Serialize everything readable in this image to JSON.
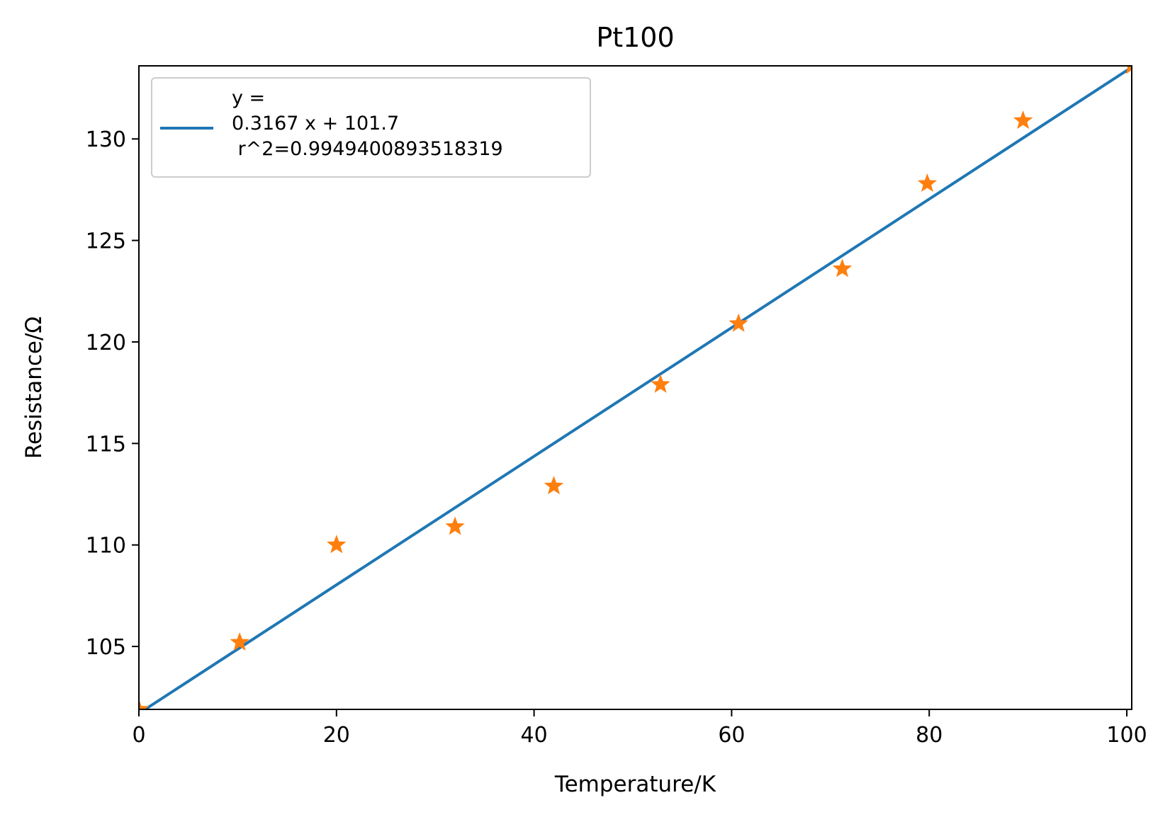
{
  "chart_data": {
    "type": "scatter",
    "title": "Pt100",
    "xlabel": "Temperature/K",
    "ylabel": "Resistance/Ω",
    "xlim": [
      0,
      100.5
    ],
    "ylim": [
      101.9,
      133.6
    ],
    "xticks": [
      0,
      20,
      40,
      60,
      80,
      100
    ],
    "yticks": [
      105,
      110,
      115,
      120,
      125,
      130
    ],
    "grid": false,
    "legend_position": "top-left",
    "colors": {
      "fit": "#1f77b4",
      "points": "#ff7f0e"
    },
    "fit_line": {
      "x": [
        0,
        100.5
      ],
      "y": [
        101.7,
        133.53
      ],
      "legend_lines": [
        "y =",
        "0.3167 x + 101.7",
        " r^2=0.9949400893518319"
      ]
    },
    "series": [
      {
        "marker": "star",
        "x": [
          0,
          10.2,
          20.0,
          32.0,
          42.0,
          52.8,
          60.7,
          71.2,
          79.8,
          89.5,
          100.5
        ],
        "y": [
          101.9,
          105.2,
          110.0,
          110.9,
          112.9,
          117.9,
          120.9,
          123.6,
          127.8,
          130.9,
          133.6
        ]
      }
    ]
  }
}
